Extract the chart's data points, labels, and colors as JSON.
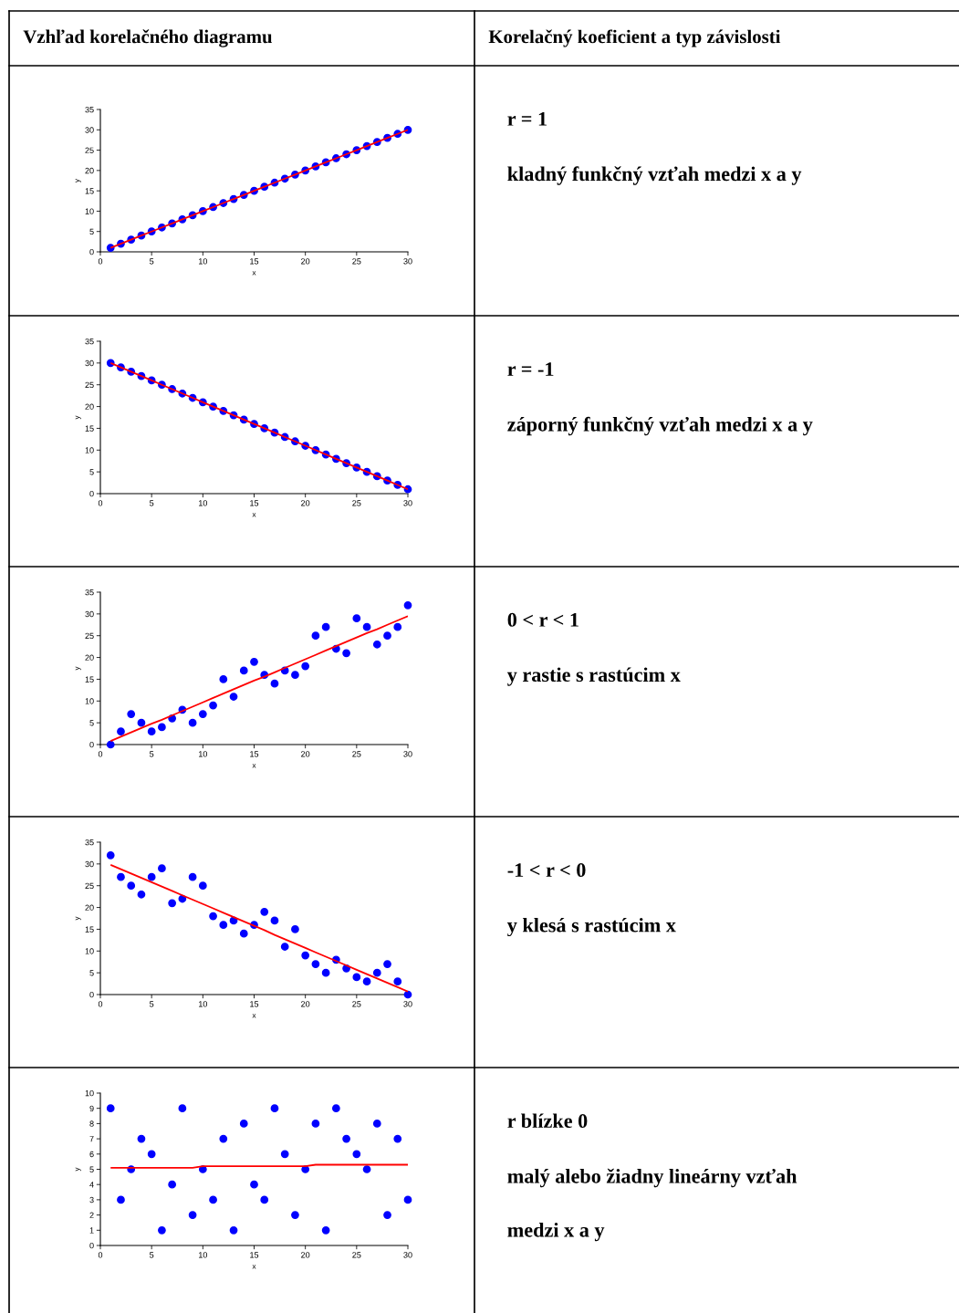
{
  "chart_data": [
    {
      "type": "other",
      "title": "Vzhľad korelačného diagramu"
    },
    {
      "type": "other",
      "title": "Korelačný koeficient a typ závislosti"
    },
    {
      "type": "scatter",
      "xlabel": "x",
      "ylabel": "y",
      "xlim": [
        0,
        30
      ],
      "ylim": [
        0,
        35
      ],
      "xticks": [
        0,
        5,
        10,
        15,
        20,
        25,
        30
      ],
      "yticks": [
        0,
        5,
        10,
        15,
        20,
        25,
        30,
        35
      ],
      "grid": false,
      "x": [
        1,
        2,
        3,
        4,
        5,
        6,
        7,
        8,
        9,
        10,
        11,
        12,
        13,
        14,
        15,
        16,
        17,
        18,
        19,
        20,
        21,
        22,
        23,
        24,
        25,
        26,
        27,
        28,
        29,
        30
      ],
      "series": [
        {
          "type": "scatter",
          "marker": "circle",
          "color": "#0000ff",
          "values": [
            1,
            2,
            3,
            4,
            5,
            6,
            7,
            8,
            9,
            10,
            11,
            12,
            13,
            14,
            15,
            16,
            17,
            18,
            19,
            20,
            21,
            22,
            23,
            24,
            25,
            26,
            27,
            28,
            29,
            30
          ]
        },
        {
          "type": "line",
          "color": "#ff0000",
          "values": [
            1,
            2,
            3,
            4,
            5,
            6,
            7,
            8,
            9,
            10,
            11,
            12,
            13,
            14,
            15,
            16,
            17,
            18,
            19,
            20,
            21,
            22,
            23,
            24,
            25,
            26,
            27,
            28,
            29,
            30
          ]
        }
      ]
    },
    {
      "type": "other",
      "title": "r = 1",
      "annotations": [
        "kladný funkčný vzťah medzi x a y"
      ]
    },
    {
      "type": "scatter",
      "xlabel": "x",
      "ylabel": "y",
      "xlim": [
        0,
        30
      ],
      "ylim": [
        0,
        35
      ],
      "xticks": [
        0,
        5,
        10,
        15,
        20,
        25,
        30
      ],
      "yticks": [
        0,
        5,
        10,
        15,
        20,
        25,
        30,
        35
      ],
      "grid": false,
      "x": [
        1,
        2,
        3,
        4,
        5,
        6,
        7,
        8,
        9,
        10,
        11,
        12,
        13,
        14,
        15,
        16,
        17,
        18,
        19,
        20,
        21,
        22,
        23,
        24,
        25,
        26,
        27,
        28,
        29,
        30
      ],
      "series": [
        {
          "type": "scatter",
          "marker": "circle",
          "color": "#0000ff",
          "values": [
            30,
            29,
            28,
            27,
            26,
            25,
            24,
            23,
            22,
            21,
            20,
            19,
            18,
            17,
            16,
            15,
            14,
            13,
            12,
            11,
            10,
            9,
            8,
            7,
            6,
            5,
            4,
            3,
            2,
            1
          ]
        },
        {
          "type": "line",
          "color": "#ff0000",
          "values": [
            30,
            29,
            28,
            27,
            26,
            25,
            24,
            23,
            22,
            21,
            20,
            19,
            18,
            17,
            16,
            15,
            14,
            13,
            12,
            11,
            10,
            9,
            8,
            7,
            6,
            5,
            4,
            3,
            2,
            1
          ]
        }
      ]
    },
    {
      "type": "other",
      "title": "r = -1",
      "annotations": [
        "záporný funkčný vzťah medzi x a y"
      ]
    },
    {
      "type": "scatter",
      "xlabel": "x",
      "ylabel": "y",
      "xlim": [
        0,
        30
      ],
      "ylim": [
        0,
        35
      ],
      "xticks": [
        0,
        5,
        10,
        15,
        20,
        25,
        30
      ],
      "yticks": [
        0,
        5,
        10,
        15,
        20,
        25,
        30,
        35
      ],
      "grid": false,
      "x": [
        1,
        2,
        3,
        4,
        5,
        6,
        7,
        8,
        9,
        10,
        11,
        12,
        13,
        14,
        15,
        16,
        17,
        18,
        19,
        20,
        21,
        22,
        23,
        24,
        25,
        26,
        27,
        28,
        29,
        30
      ],
      "series": [
        {
          "type": "scatter",
          "marker": "circle",
          "color": "#0000ff",
          "values": [
            0,
            3,
            7,
            5,
            3,
            4,
            6,
            8,
            5,
            7,
            9,
            15,
            11,
            17,
            19,
            16,
            14,
            17,
            16,
            18,
            25,
            27,
            22,
            21,
            29,
            27,
            23,
            25,
            27,
            32
          ]
        },
        {
          "type": "line",
          "color": "#ff0000",
          "values": [
            0.8,
            1.8,
            2.8,
            3.8,
            4.8,
            5.7,
            6.7,
            7.7,
            8.7,
            9.7,
            10.7,
            11.7,
            12.7,
            13.7,
            14.7,
            15.6,
            16.6,
            17.6,
            18.6,
            19.6,
            20.6,
            21.6,
            22.6,
            23.6,
            24.6,
            25.6,
            26.5,
            27.5,
            28.5,
            29.5
          ]
        }
      ]
    },
    {
      "type": "other",
      "title": "0 < r < 1",
      "annotations": [
        "y rastie s rastúcim x"
      ]
    },
    {
      "type": "scatter",
      "xlabel": "x",
      "ylabel": "y",
      "xlim": [
        0,
        30
      ],
      "ylim": [
        0,
        35
      ],
      "xticks": [
        0,
        5,
        10,
        15,
        20,
        25,
        30
      ],
      "yticks": [
        0,
        5,
        10,
        15,
        20,
        25,
        30,
        35
      ],
      "grid": false,
      "x": [
        1,
        2,
        3,
        4,
        5,
        6,
        7,
        8,
        9,
        10,
        11,
        12,
        13,
        14,
        15,
        16,
        17,
        18,
        19,
        20,
        21,
        22,
        23,
        24,
        25,
        26,
        27,
        28,
        29,
        30
      ],
      "series": [
        {
          "type": "scatter",
          "marker": "circle",
          "color": "#0000ff",
          "values": [
            32,
            27,
            25,
            23,
            27,
            29,
            21,
            22,
            27,
            25,
            18,
            16,
            17,
            14,
            16,
            19,
            17,
            11,
            15,
            9,
            7,
            5,
            8,
            6,
            4,
            3,
            5,
            7,
            3,
            0
          ]
        },
        {
          "type": "line",
          "color": "#ff0000",
          "values": [
            29.8,
            28.8,
            27.8,
            26.8,
            25.8,
            24.8,
            23.8,
            22.8,
            21.8,
            20.8,
            19.8,
            18.8,
            17.8,
            16.8,
            15.8,
            14.8,
            13.7,
            12.7,
            11.7,
            10.7,
            9.7,
            8.7,
            7.7,
            6.7,
            5.7,
            4.7,
            3.7,
            2.7,
            1.7,
            0.7
          ]
        }
      ]
    },
    {
      "type": "other",
      "title": "-1 < r < 0",
      "annotations": [
        "y klesá s rastúcim x"
      ]
    },
    {
      "type": "scatter",
      "xlabel": "x",
      "ylabel": "y",
      "xlim": [
        0,
        30
      ],
      "ylim": [
        0,
        10
      ],
      "xticks": [
        0,
        5,
        10,
        15,
        20,
        25,
        30
      ],
      "yticks": [
        0,
        1,
        2,
        3,
        4,
        5,
        6,
        7,
        8,
        9,
        10
      ],
      "grid": false,
      "x": [
        1,
        2,
        3,
        4,
        5,
        6,
        7,
        8,
        9,
        10,
        11,
        12,
        13,
        14,
        15,
        16,
        17,
        18,
        19,
        20,
        21,
        22,
        23,
        24,
        25,
        26,
        27,
        28,
        29,
        30
      ],
      "series": [
        {
          "type": "scatter",
          "marker": "circle",
          "color": "#0000ff",
          "values": [
            9,
            3,
            5,
            7,
            6,
            1,
            4,
            9,
            2,
            5,
            3,
            7,
            1,
            8,
            4,
            3,
            9,
            6,
            2,
            5,
            8,
            1,
            9,
            7,
            6,
            5,
            8,
            2,
            7,
            3
          ]
        },
        {
          "type": "line",
          "color": "#ff0000",
          "values": [
            5.1,
            5.1,
            5.1,
            5.1,
            5.1,
            5.1,
            5.1,
            5.1,
            5.1,
            5.2,
            5.2,
            5.2,
            5.2,
            5.2,
            5.2,
            5.2,
            5.2,
            5.2,
            5.2,
            5.2,
            5.3,
            5.3,
            5.3,
            5.3,
            5.3,
            5.3,
            5.3,
            5.3,
            5.3,
            5.3
          ]
        }
      ]
    },
    {
      "type": "other",
      "title": "r blízke 0",
      "annotations": [
        "malý alebo žiadny lineárny vzťah",
        "medzi x a y"
      ]
    }
  ]
}
